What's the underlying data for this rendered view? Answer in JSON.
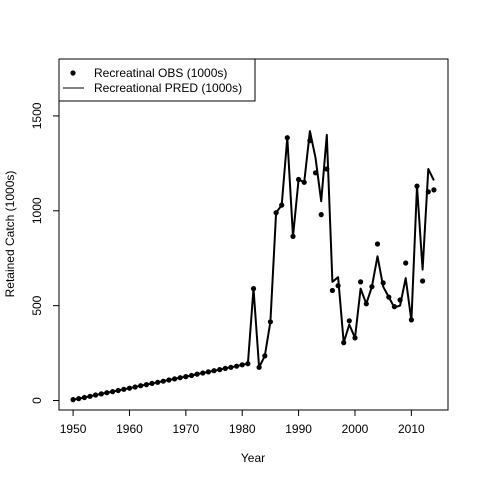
{
  "chart_data": {
    "type": "line",
    "xlabel": "Year",
    "ylabel": "Retained Catch (1000s)",
    "xlim": [
      1948.5,
      1915.5
    ],
    "ylim": [
      -50,
      1800
    ],
    "x_ticks": [
      1950,
      1960,
      1970,
      1980,
      1990,
      2000,
      2010
    ],
    "y_ticks": [
      0,
      500,
      1000,
      1500
    ],
    "legend": {
      "placement": "top-left",
      "entries": [
        "Recreatinal OBS (1000s)",
        "Recreational PRED (1000s)"
      ]
    },
    "colors": {
      "series": "#000000"
    },
    "series": [
      {
        "name": "Recreatinal OBS (1000s)",
        "style": "points",
        "x": [
          1950,
          1951,
          1952,
          1953,
          1954,
          1955,
          1956,
          1957,
          1958,
          1959,
          1960,
          1961,
          1962,
          1963,
          1964,
          1965,
          1966,
          1967,
          1968,
          1969,
          1970,
          1971,
          1972,
          1973,
          1974,
          1975,
          1976,
          1977,
          1978,
          1979,
          1980,
          1981,
          1982,
          1983,
          1984,
          1985,
          1986,
          1987,
          1988,
          1989,
          1990,
          1991,
          1992,
          1993,
          1994,
          1995,
          1996,
          1997,
          1998,
          1999,
          2000,
          2001,
          2002,
          2003,
          2004,
          2005,
          2006,
          2007,
          2008,
          2009,
          2010,
          2011,
          2012,
          2013,
          2014
        ],
        "y": [
          5,
          10,
          16,
          22,
          29,
          35,
          41,
          47,
          53,
          59,
          65,
          71,
          78,
          84,
          90,
          96,
          102,
          108,
          114,
          120,
          126,
          132,
          139,
          145,
          151,
          157,
          163,
          169,
          175,
          181,
          188,
          194,
          590,
          175,
          235,
          415,
          990,
          1030,
          1385,
          865,
          1165,
          1150,
          1370,
          1200,
          980,
          1220,
          580,
          605,
          305,
          420,
          330,
          625,
          510,
          600,
          825,
          620,
          545,
          495,
          530,
          725,
          425,
          1130,
          630,
          1100,
          1110
        ]
      },
      {
        "name": "Recreational PRED (1000s)",
        "style": "line",
        "x": [
          1950,
          1951,
          1952,
          1953,
          1954,
          1955,
          1956,
          1957,
          1958,
          1959,
          1960,
          1961,
          1962,
          1963,
          1964,
          1965,
          1966,
          1967,
          1968,
          1969,
          1970,
          1971,
          1972,
          1973,
          1974,
          1975,
          1976,
          1977,
          1978,
          1979,
          1980,
          1981,
          1982,
          1983,
          1984,
          1985,
          1986,
          1987,
          1988,
          1989,
          1990,
          1991,
          1992,
          1993,
          1994,
          1995,
          1996,
          1997,
          1998,
          1999,
          2000,
          2001,
          2002,
          2003,
          2004,
          2005,
          2006,
          2007,
          2008,
          2009,
          2010,
          2011,
          2012,
          2013,
          2014
        ],
        "y": [
          5,
          10,
          16,
          22,
          29,
          35,
          41,
          47,
          53,
          59,
          65,
          71,
          78,
          84,
          90,
          96,
          102,
          108,
          114,
          120,
          126,
          132,
          139,
          145,
          151,
          157,
          163,
          169,
          175,
          181,
          188,
          194,
          590,
          175,
          235,
          415,
          990,
          1030,
          1385,
          865,
          1165,
          1150,
          1420,
          1280,
          1050,
          1400,
          625,
          650,
          305,
          400,
          330,
          590,
          510,
          600,
          760,
          600,
          545,
          490,
          500,
          645,
          420,
          1130,
          690,
          1220,
          1160
        ]
      }
    ]
  }
}
